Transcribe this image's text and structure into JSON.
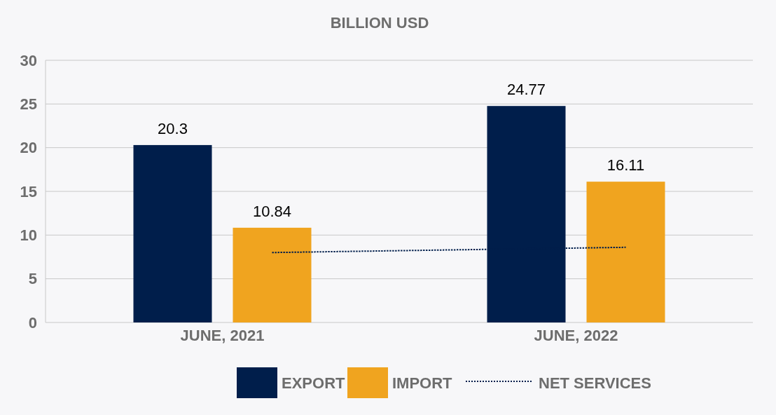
{
  "chart_data": {
    "type": "bar",
    "title": "BILLION USD",
    "categories": [
      "JUNE, 2021",
      "JUNE, 2022"
    ],
    "series": [
      {
        "name": "EXPORT",
        "color": "#001e4b",
        "values": [
          20.3,
          24.77
        ],
        "value_labels": [
          "20.3",
          "24.77"
        ]
      },
      {
        "name": "IMPORT",
        "color": "#f0a41f",
        "values": [
          10.84,
          16.11
        ],
        "value_labels": [
          "10.84",
          "16.11"
        ]
      },
      {
        "name": "NET SERVICES",
        "type": "line",
        "color": "#001e4b",
        "line_style": "dotted",
        "values": [
          8.0,
          8.6
        ]
      }
    ],
    "ylim": [
      0,
      30
    ],
    "yticks": [
      0,
      5,
      10,
      15,
      20,
      25,
      30
    ],
    "grid": "y",
    "legend": "bottom"
  }
}
